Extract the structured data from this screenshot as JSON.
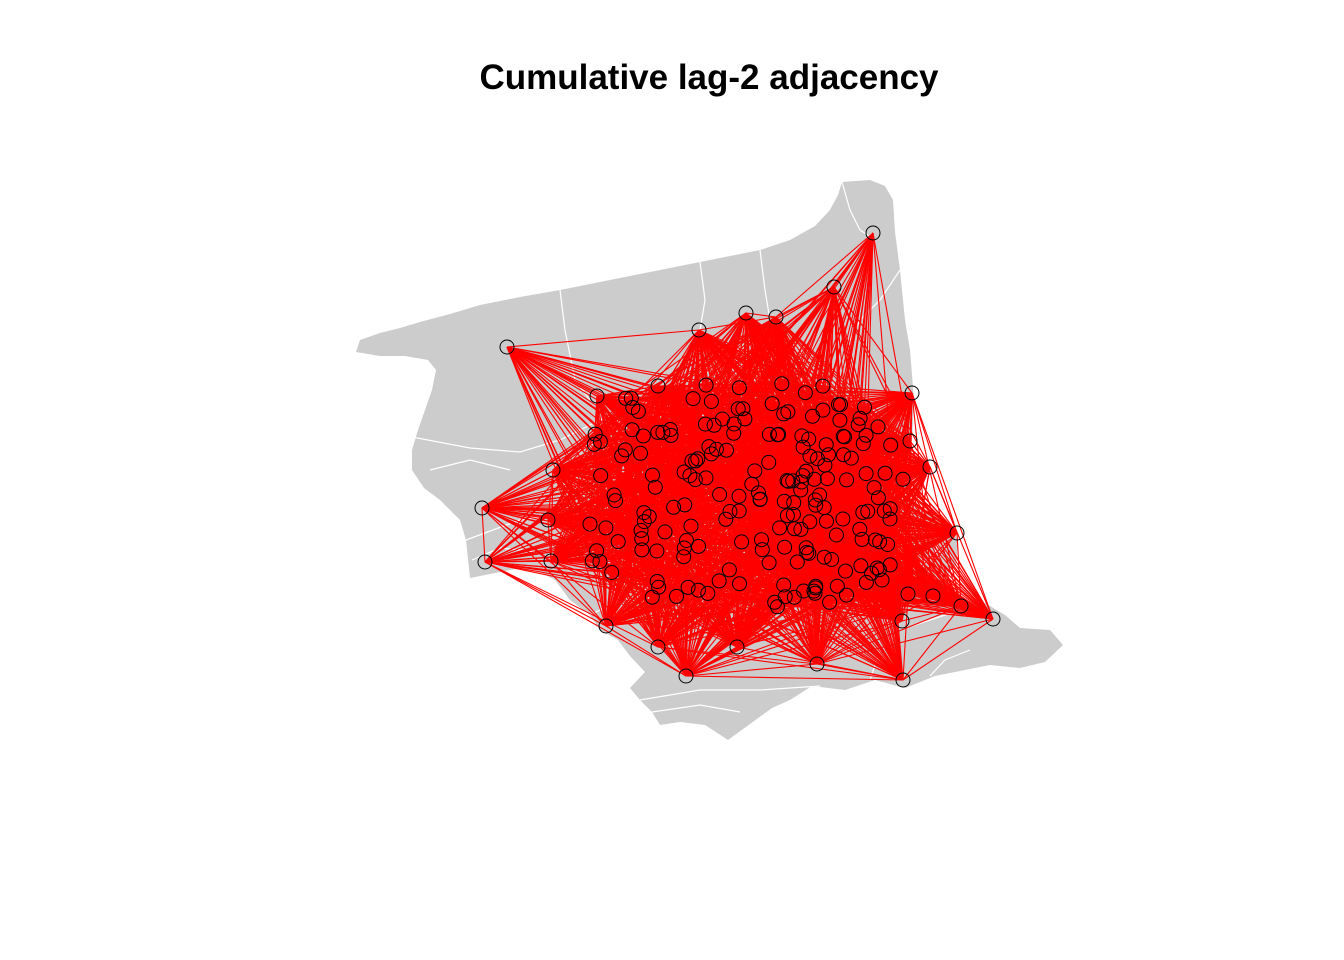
{
  "title": "Cumulative lag-2 adjacency",
  "colors": {
    "region_fill": "#cccccc",
    "region_border": "#ffffff",
    "link": "#ff0000",
    "node_outline": "#000000",
    "background": "#ffffff"
  },
  "legend": "none"
}
